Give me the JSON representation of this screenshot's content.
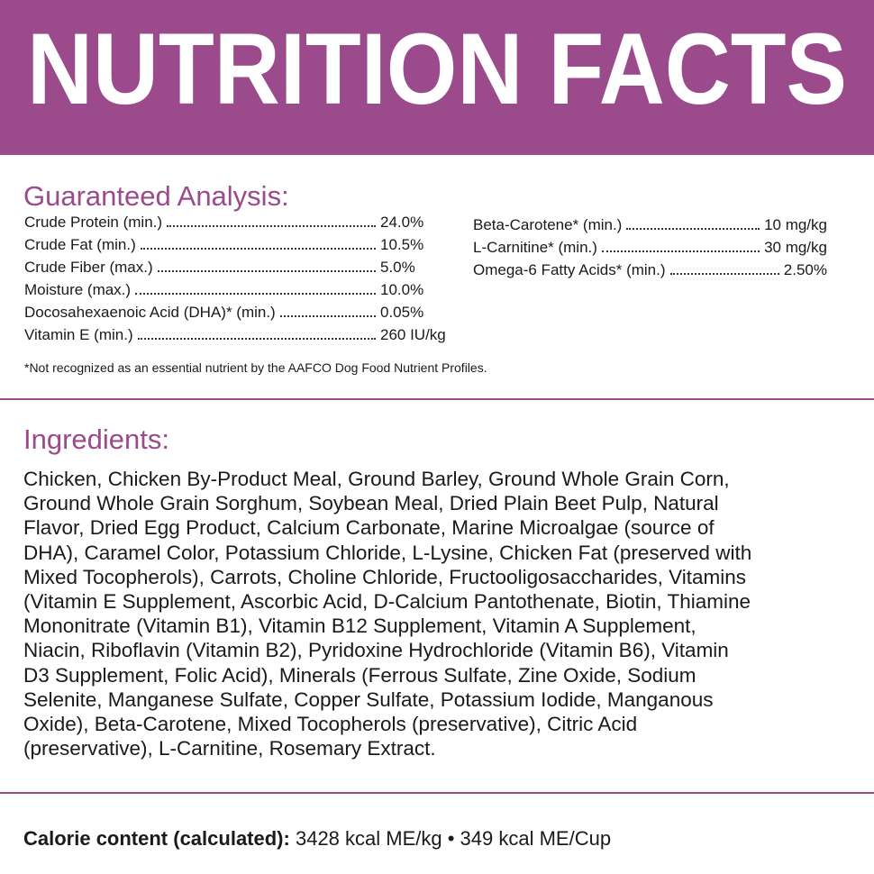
{
  "header": {
    "title": "NUTRITION FACTS"
  },
  "analysis": {
    "heading": "Guaranteed Analysis:",
    "left": [
      {
        "name": "Crude Protein (min.)",
        "value": "24.0%"
      },
      {
        "name": "Crude Fat (min.)",
        "value": "10.5%"
      },
      {
        "name": "Crude Fiber (max.)",
        "value": "5.0%"
      },
      {
        "name": "Moisture (max.)",
        "value": "10.0%"
      },
      {
        "name": "Docosahexaenoic Acid (DHA)* (min.)",
        "value": "0.05%"
      },
      {
        "name": "Vitamin E (min.)",
        "value": "260 IU/kg"
      }
    ],
    "right": [
      {
        "name": "Beta-Carotene* (min.)",
        "value": "10 mg/kg"
      },
      {
        "name": "L-Carnitine* (min.)",
        "value": "30 mg/kg"
      },
      {
        "name": "Omega-6 Fatty Acids* (min.)",
        "value": "2.50%"
      }
    ],
    "footnote": "*Not recognized as an essential nutrient by the AAFCO Dog Food Nutrient Profiles."
  },
  "ingredients": {
    "heading": "Ingredients:",
    "lines": [
      "Chicken, Chicken By-Product Meal, Ground Barley, Ground Whole Grain Corn,",
      "Ground Whole Grain Sorghum, Soybean Meal, Dried Plain Beet Pulp, Natural",
      "Flavor, Dried Egg Product, Calcium Carbonate, Marine Microalgae (source of",
      "DHA), Caramel Color, Potassium Chloride, L-Lysine, Chicken Fat (preserved with",
      "Mixed Tocopherols), Carrots, Choline Chloride, Fructooligosaccharides, Vitamins",
      "(Vitamin E Supplement, Ascorbic Acid, D-Calcium Pantothenate, Biotin, Thiamine",
      "Mononitrate (Vitamin B1), Vitamin B12 Supplement, Vitamin A Supplement,",
      "Niacin, Riboflavin (Vitamin B2), Pyridoxine Hydrochloride (Vitamin B6), Vitamin",
      "D3 Supplement, Folic Acid), Minerals (Ferrous Sulfate, Zine Oxide, Sodium",
      "Selenite, Manganese Sulfate, Copper Sulfate, Potassium Iodide, Manganous",
      "Oxide), Beta-Carotene, Mixed Tocopherols (preservative), Citric Acid",
      "(preservative), L-Carnitine, Rosemary Extract."
    ]
  },
  "calorie": {
    "label": "Calorie content (calculated):",
    "value": "3428 kcal ME/kg • 349 kcal ME/Cup"
  }
}
